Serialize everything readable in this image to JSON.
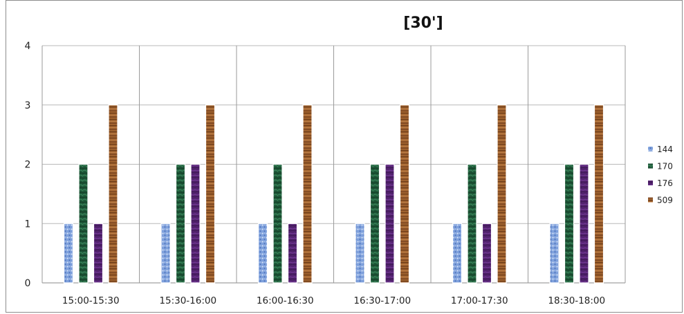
{
  "chart_data": {
    "type": "bar",
    "title": "[30']",
    "xlabel": "",
    "ylabel": "",
    "ylim": [
      0,
      4
    ],
    "yticks": [
      "0",
      "1",
      "2",
      "3",
      "4"
    ],
    "grid": true,
    "legend_position": "right",
    "categories": [
      "15:00-15:30",
      "15:30-16:00",
      "16:00-16:30",
      "16:30-17:00",
      "17:00-17:30",
      "18:30-18:00"
    ],
    "series": [
      {
        "name": "144",
        "color": "#7fa1dc",
        "values": [
          1,
          1,
          1,
          1,
          1,
          1
        ]
      },
      {
        "name": "170",
        "color": "#1f5a3a",
        "values": [
          2,
          2,
          2,
          2,
          2,
          2
        ]
      },
      {
        "name": "176",
        "color": "#52226e",
        "values": [
          1,
          2,
          1,
          2,
          1,
          2
        ]
      },
      {
        "name": "509",
        "color": "#9a5a2e",
        "values": [
          3,
          3,
          3,
          3,
          3,
          3
        ]
      }
    ]
  }
}
